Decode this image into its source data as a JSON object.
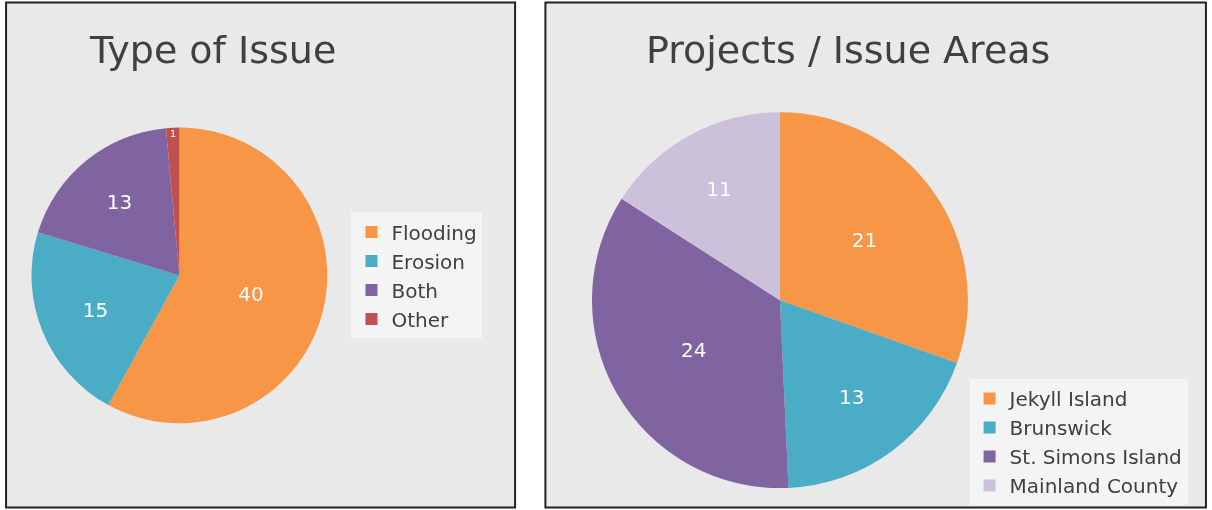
{
  "chart_data": [
    {
      "type": "pie",
      "title": "Type of Issue",
      "categories": [
        "Flooding",
        "Erosion",
        "Both",
        "Other"
      ],
      "values": [
        40,
        15,
        13,
        1
      ],
      "colors": [
        "#f79646",
        "#4bacc6",
        "#8064a2",
        "#c0504d"
      ],
      "data_labels": true,
      "legend": "right"
    },
    {
      "type": "pie",
      "title": "Projects / Issue Areas",
      "categories": [
        "Jekyll Island",
        "Brunswick",
        "St. Simons Island",
        "Mainland County"
      ],
      "values": [
        21,
        13,
        24,
        11
      ],
      "colors": [
        "#f79646",
        "#4bacc6",
        "#8064a2",
        "#ccc1da"
      ],
      "data_labels": true,
      "legend": "bottom right"
    }
  ]
}
